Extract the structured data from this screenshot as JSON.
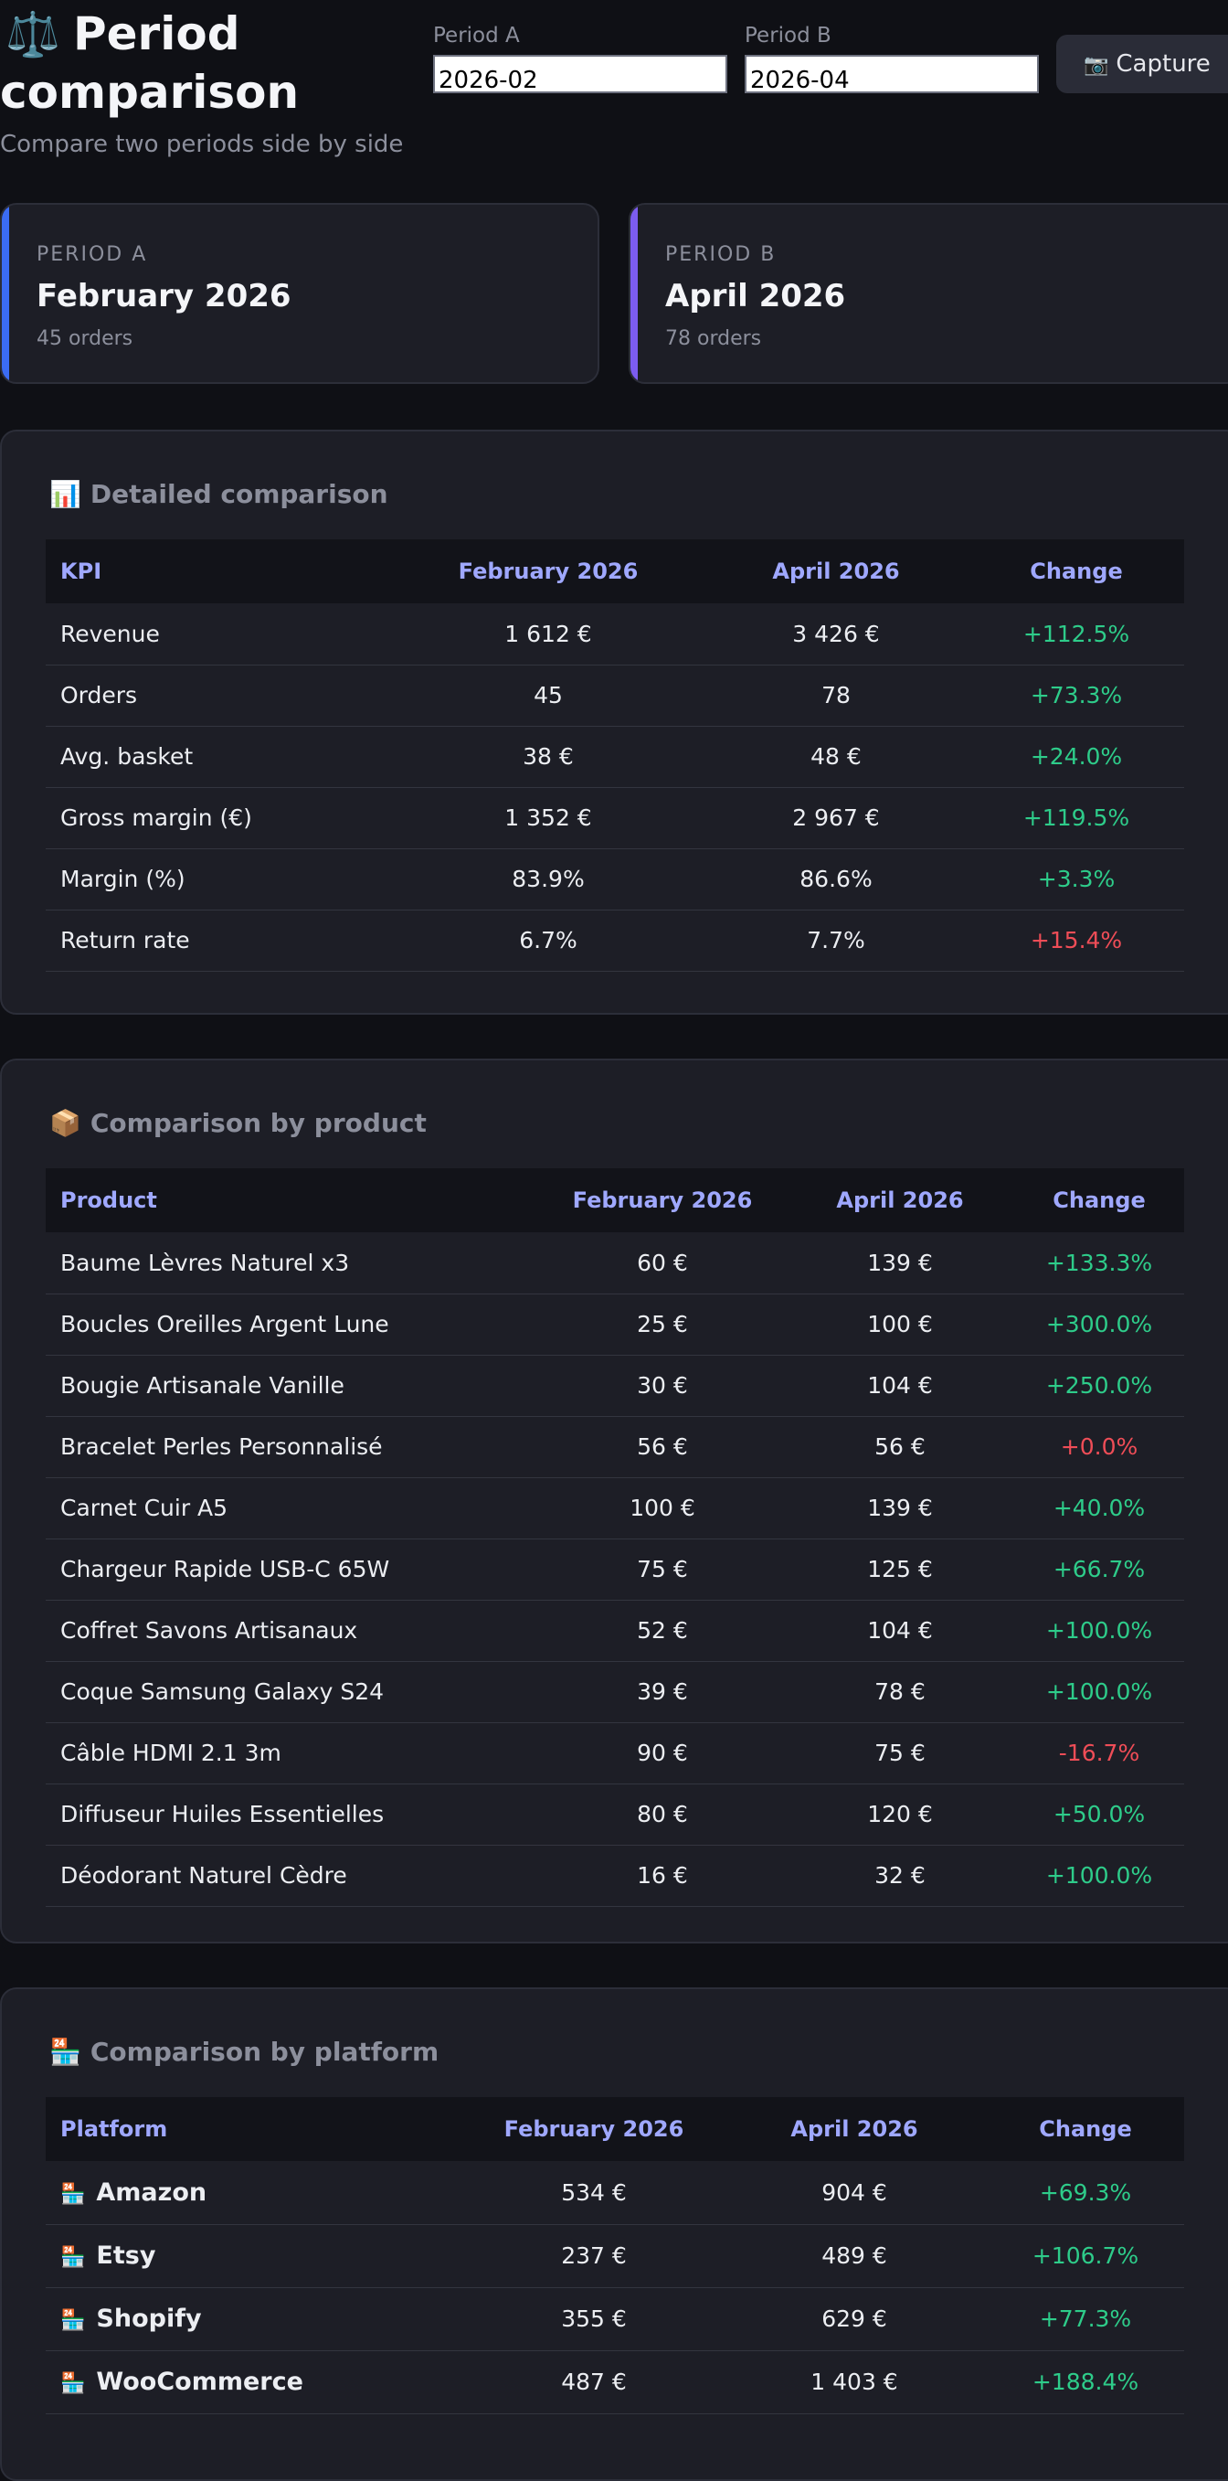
{
  "header": {
    "icon": "⚖️",
    "title_line1": "Period",
    "title_line2": "comparison",
    "subtitle": "Compare two periods side by side",
    "period_a_label": "Period A",
    "period_a_value": "2026-02",
    "period_b_label": "Period B",
    "period_b_value": "2026-04",
    "capture_icon": "📷",
    "capture_label": "Capture"
  },
  "cards": {
    "a": {
      "label": "PERIOD A",
      "title": "February 2026",
      "orders": "45 orders",
      "accent": "#3b6cf4"
    },
    "b": {
      "label": "PERIOD B",
      "title": "April 2026",
      "orders": "78 orders",
      "accent": "#7c5cf0"
    }
  },
  "detailed": {
    "icon": "📊",
    "title": "Detailed comparison",
    "headers": [
      "KPI",
      "February 2026",
      "April 2026",
      "Change"
    ],
    "rows": [
      {
        "kpi": "Revenue",
        "a": "1 612 €",
        "b": "3 426 €",
        "change": "+112.5%",
        "trend": "pos"
      },
      {
        "kpi": "Orders",
        "a": "45",
        "b": "78",
        "change": "+73.3%",
        "trend": "pos"
      },
      {
        "kpi": "Avg. basket",
        "a": "38 €",
        "b": "48 €",
        "change": "+24.0%",
        "trend": "pos"
      },
      {
        "kpi": "Gross margin (€)",
        "a": "1 352 €",
        "b": "2 967 €",
        "change": "+119.5%",
        "trend": "pos"
      },
      {
        "kpi": "Margin (%)",
        "a": "83.9%",
        "b": "86.6%",
        "change": "+3.3%",
        "trend": "pos"
      },
      {
        "kpi": "Return rate",
        "a": "6.7%",
        "b": "7.7%",
        "change": "+15.4%",
        "trend": "neg"
      }
    ]
  },
  "products": {
    "icon": "📦",
    "title": "Comparison by product",
    "headers": [
      "Product",
      "February 2026",
      "April 2026",
      "Change"
    ],
    "rows": [
      {
        "name": "Baume Lèvres Naturel x3",
        "a": "60 €",
        "b": "139 €",
        "change": "+133.3%",
        "trend": "pos"
      },
      {
        "name": "Boucles Oreilles Argent Lune",
        "a": "25 €",
        "b": "100 €",
        "change": "+300.0%",
        "trend": "pos"
      },
      {
        "name": "Bougie Artisanale Vanille",
        "a": "30 €",
        "b": "104 €",
        "change": "+250.0%",
        "trend": "pos"
      },
      {
        "name": "Bracelet Perles Personnalisé",
        "a": "56 €",
        "b": "56 €",
        "change": "+0.0%",
        "trend": "neg"
      },
      {
        "name": "Carnet Cuir A5",
        "a": "100 €",
        "b": "139 €",
        "change": "+40.0%",
        "trend": "pos"
      },
      {
        "name": "Chargeur Rapide USB-C 65W",
        "a": "75 €",
        "b": "125 €",
        "change": "+66.7%",
        "trend": "pos"
      },
      {
        "name": "Coffret Savons Artisanaux",
        "a": "52 €",
        "b": "104 €",
        "change": "+100.0%",
        "trend": "pos"
      },
      {
        "name": "Coque Samsung Galaxy S24",
        "a": "39 €",
        "b": "78 €",
        "change": "+100.0%",
        "trend": "pos"
      },
      {
        "name": "Câble HDMI 2.1 3m",
        "a": "90 €",
        "b": "75 €",
        "change": "-16.7%",
        "trend": "neg"
      },
      {
        "name": "Diffuseur Huiles Essentielles",
        "a": "80 €",
        "b": "120 €",
        "change": "+50.0%",
        "trend": "pos"
      },
      {
        "name": "Déodorant Naturel Cèdre",
        "a": "16 €",
        "b": "32 €",
        "change": "+100.0%",
        "trend": "pos"
      }
    ]
  },
  "platforms": {
    "icon": "🏪",
    "title": "Comparison by platform",
    "headers": [
      "Platform",
      "February 2026",
      "April 2026",
      "Change"
    ],
    "row_icon": "🏪",
    "rows": [
      {
        "name": "Amazon",
        "a": "534 €",
        "b": "904 €",
        "change": "+69.3%",
        "trend": "pos"
      },
      {
        "name": "Etsy",
        "a": "237 €",
        "b": "489 €",
        "change": "+106.7%",
        "trend": "pos"
      },
      {
        "name": "Shopify",
        "a": "355 €",
        "b": "629 €",
        "change": "+77.3%",
        "trend": "pos"
      },
      {
        "name": "WooCommerce",
        "a": "487 €",
        "b": "1 403 €",
        "change": "+188.4%",
        "trend": "pos"
      }
    ]
  },
  "colors": {
    "positive": "#2ecc8a",
    "negative": "#ef4d57",
    "header_text": "#9fa8ff"
  }
}
